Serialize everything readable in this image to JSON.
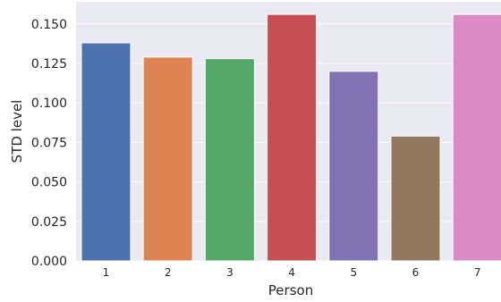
{
  "chart_data": {
    "type": "bar",
    "xlabel": "Person",
    "ylabel": "STD level",
    "categories": [
      "1",
      "2",
      "3",
      "4",
      "5",
      "6",
      "7"
    ],
    "values": [
      0.138,
      0.129,
      0.128,
      0.156,
      0.12,
      0.079,
      0.156
    ],
    "ylim": [
      0,
      0.164
    ],
    "yticks": [
      0.0,
      0.025,
      0.05,
      0.075,
      0.1,
      0.125,
      0.15
    ],
    "ytick_labels": [
      "0.000",
      "0.025",
      "0.050",
      "0.075",
      "0.100",
      "0.125",
      "0.150"
    ],
    "grid": true,
    "legend": "none",
    "colors": [
      "#4c72b0",
      "#dd8452",
      "#55a868",
      "#c44e52",
      "#8172b3",
      "#937860",
      "#da8bc3"
    ],
    "background_color": "#eaeaf2",
    "grid_color": "#ffffff"
  }
}
